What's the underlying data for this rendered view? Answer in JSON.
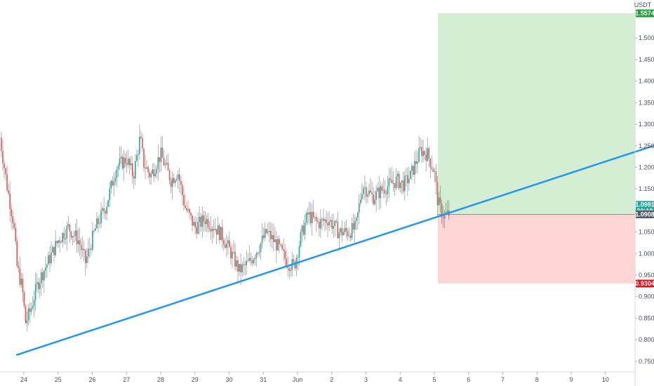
{
  "colors": {
    "background": "#ffffff",
    "up_candle": "#26a69a",
    "down_candle": "#ef5350",
    "wick": "#555555",
    "trendline": "#2196f3",
    "profit_zone": "#cdebcd",
    "loss_zone": "#ffd2d2",
    "target_badge": "#1e9c3c",
    "stop_badge": "#e0141e",
    "price_badge": "#555c68",
    "axis_text": "#4a4f5a"
  },
  "chart_data": {
    "type": "candlestick",
    "currency": "USDT",
    "x_ticks": [
      "24",
      "25",
      "26",
      "27",
      "28",
      "29",
      "30",
      "31",
      "Jun",
      "2",
      "3",
      "4",
      "5",
      "6",
      "7",
      "8",
      "9",
      "10"
    ],
    "y_ticks": [
      "1.5000",
      "1.4500",
      "1.4000",
      "1.3500",
      "1.3000",
      "1.2500",
      "1.2000",
      "1.1500",
      "1.1000",
      "1.0500",
      "1.0000",
      "0.9500",
      "0.9000",
      "0.8500",
      "0.8000",
      "0.7500"
    ],
    "ylim": [
      0.725,
      1.58
    ],
    "xlim_days": [
      0,
      18.4
    ],
    "price_path": [
      [
        -0.7,
        1.27
      ],
      [
        -0.5,
        1.16
      ],
      [
        -0.3,
        1.07
      ],
      [
        -0.2,
        0.97
      ],
      [
        -0.05,
        0.92
      ],
      [
        0.05,
        0.84
      ],
      [
        0.2,
        0.87
      ],
      [
        0.4,
        0.93
      ],
      [
        0.7,
        0.98
      ],
      [
        1.0,
        1.03
      ],
      [
        1.3,
        1.06
      ],
      [
        1.6,
        1.03
      ],
      [
        1.8,
        0.98
      ],
      [
        2.1,
        1.06
      ],
      [
        2.4,
        1.11
      ],
      [
        2.7,
        1.2
      ],
      [
        3.0,
        1.22
      ],
      [
        3.2,
        1.18
      ],
      [
        3.4,
        1.27
      ],
      [
        3.5,
        1.21
      ],
      [
        3.7,
        1.18
      ],
      [
        4.0,
        1.23
      ],
      [
        4.3,
        1.17
      ],
      [
        4.5,
        1.19
      ],
      [
        4.7,
        1.11
      ],
      [
        5.0,
        1.06
      ],
      [
        5.3,
        1.08
      ],
      [
        5.6,
        1.06
      ],
      [
        5.8,
        1.04
      ],
      [
        6.0,
        1.01
      ],
      [
        6.3,
        0.96
      ],
      [
        6.6,
        0.98
      ],
      [
        6.9,
        1.02
      ],
      [
        7.1,
        1.05
      ],
      [
        7.4,
        1.02
      ],
      [
        7.7,
        0.98
      ],
      [
        7.9,
        0.97
      ],
      [
        8.1,
        1.04
      ],
      [
        8.3,
        1.09
      ],
      [
        8.6,
        1.07
      ],
      [
        8.9,
        1.08
      ],
      [
        9.2,
        1.05
      ],
      [
        9.5,
        1.05
      ],
      [
        9.7,
        1.06
      ],
      [
        9.9,
        1.16
      ],
      [
        10.2,
        1.13
      ],
      [
        10.5,
        1.15
      ],
      [
        10.9,
        1.17
      ],
      [
        11.1,
        1.16
      ],
      [
        11.3,
        1.18
      ],
      [
        11.6,
        1.24
      ],
      [
        11.8,
        1.23
      ],
      [
        12.0,
        1.19
      ],
      [
        12.1,
        1.12
      ],
      [
        12.25,
        1.09
      ],
      [
        12.45,
        1.0908
      ]
    ],
    "trendline": {
      "start": [
        -0.2,
        0.765
      ],
      "end": [
        18.4,
        1.25
      ]
    },
    "position": {
      "x_range": [
        12.1,
        18.4
      ],
      "entry": 1.0908,
      "target": 1.5574,
      "stop": 0.9304
    },
    "price_labels": {
      "target": "1.5574",
      "last": "1.0991",
      "countdown": "39:19",
      "entry": "1.0908",
      "stop": "0.9304"
    }
  }
}
